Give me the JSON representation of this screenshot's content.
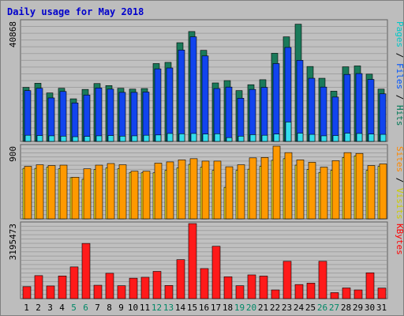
{
  "chart_data": {
    "type": "bar",
    "title": "Daily usage for May 2018",
    "x": [
      "1",
      "2",
      "3",
      "4",
      "5",
      "6",
      "7",
      "8",
      "9",
      "10",
      "11",
      "12",
      "13",
      "14",
      "15",
      "16",
      "17",
      "18",
      "19",
      "20",
      "21",
      "22",
      "23",
      "24",
      "25",
      "26",
      "27",
      "28",
      "29",
      "30",
      "31"
    ],
    "weekend_days": [
      "5",
      "6",
      "12",
      "13",
      "19",
      "20",
      "26",
      "27"
    ],
    "panels": [
      {
        "name": "pages-files-hits",
        "max_label": "40868",
        "ylim": [
          0,
          40868
        ],
        "side_labels": [
          {
            "text": "Pages",
            "color": "#00c8c8"
          },
          {
            "text": " / ",
            "color": "#000000"
          },
          {
            "text": "Files",
            "color": "#0055ff"
          },
          {
            "text": " / ",
            "color": "#000000"
          },
          {
            "text": "Hits",
            "color": "#007755"
          }
        ],
        "series": [
          {
            "name": "Hits",
            "color": "#1a7a5a",
            "values": [
              18400,
              19800,
              16500,
              18100,
              14500,
              17700,
              19700,
              19000,
              18100,
              17800,
              18000,
              26500,
              26900,
              33600,
              37400,
              31000,
              19900,
              20700,
              17300,
              19300,
              21000,
              30000,
              35600,
              39900,
              25500,
              21500,
              17100,
              25400,
              25700,
              22900,
              17800
            ]
          },
          {
            "name": "Files",
            "color": "#1144ee",
            "values": [
              17300,
              18100,
              14800,
              17000,
              13100,
              15800,
              18200,
              17800,
              16700,
              16700,
              16800,
              24700,
              25000,
              31100,
              35600,
              29100,
              18000,
              18500,
              14700,
              17700,
              18400,
              26500,
              32000,
              27600,
              21500,
              18500,
              15100,
              22800,
              23100,
              21100,
              16200
            ]
          },
          {
            "name": "Pages",
            "color": "#33ddee",
            "values": [
              2100,
              2000,
              1900,
              1800,
              1600,
              1700,
              1900,
              2000,
              1800,
              1900,
              2100,
              2200,
              2700,
              2600,
              2700,
              2500,
              2600,
              1300,
              1800,
              2300,
              2100,
              2500,
              6600,
              2800,
              2400,
              1900,
              2000,
              2800,
              2700,
              2500,
              2400
            ]
          }
        ]
      },
      {
        "name": "sites-visits",
        "max_label": "900",
        "ylim": [
          0,
          900
        ],
        "side_labels": [
          {
            "text": "Sites",
            "color": "#ff8800"
          },
          {
            "text": " / ",
            "color": "#000000"
          },
          {
            "text": "Visits",
            "color": "#cccc00"
          }
        ],
        "series": [
          {
            "name": "Visits",
            "color": "#ffee22",
            "values": [
              625,
              625,
              640,
              620,
              510,
              490,
              610,
              630,
              620,
              575,
              570,
              570,
              600,
              630,
              675,
              640,
              600,
              390,
              600,
              615,
              650,
              725,
              745,
              665,
              610,
              575,
              600,
              760,
              780,
              600,
              650
            ]
          },
          {
            "name": "Sites",
            "color": "#ff9900",
            "values": [
              650,
              670,
              660,
              665,
              515,
              620,
              665,
              685,
              670,
              590,
              590,
              690,
              705,
              730,
              745,
              715,
              715,
              645,
              670,
              755,
              760,
              900,
              820,
              730,
              700,
              640,
              720,
              820,
              810,
              660,
              680
            ]
          }
        ]
      },
      {
        "name": "kbytes",
        "max_label": "3195473",
        "ylim": [
          0,
          3195473
        ],
        "side_labels": [
          {
            "text": "KBytes",
            "color": "#ff0000"
          }
        ],
        "series": [
          {
            "name": "KBytes",
            "color": "#ff1a1a",
            "values": [
              510000,
              980000,
              540000,
              965000,
              1350000,
              2350000,
              570000,
              1080000,
              550000,
              870000,
              910000,
              1160000,
              560000,
              1660000,
              3195473,
              1280000,
              2230000,
              930000,
              550000,
              1010000,
              960000,
              370000,
              1590000,
              600000,
              660000,
              1590000,
              255000,
              455000,
              370000,
              1100000,
              450000
            ]
          }
        ]
      }
    ]
  },
  "colors": {
    "background": "#bdbdbd",
    "plot_background": "#c0c0c0",
    "gridline": "#a0a0a0",
    "weekday_label": "#000000",
    "weekend_label": "#008866"
  }
}
